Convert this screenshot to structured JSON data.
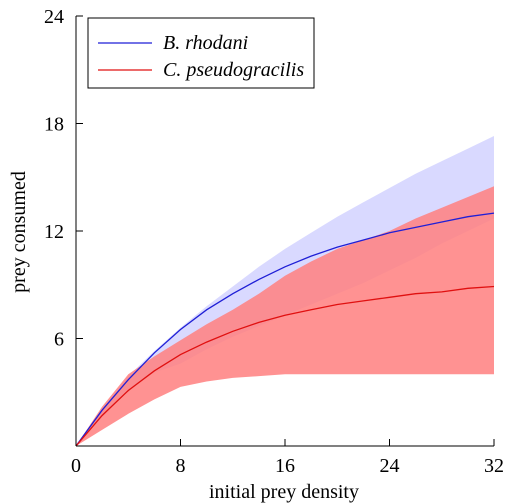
{
  "chart_data": {
    "type": "line",
    "title": "",
    "xlabel": "initial prey density",
    "ylabel": "prey consumed",
    "xlim": [
      0,
      32
    ],
    "ylim": [
      0,
      24
    ],
    "x_ticks": [
      0,
      8,
      16,
      24,
      32
    ],
    "y_ticks": [
      6,
      12,
      18,
      24
    ],
    "x_tick_labels": [
      "0",
      "8",
      "16",
      "24",
      "32"
    ],
    "y_tick_labels": [
      "6",
      "12",
      "18",
      "24"
    ],
    "grid": false,
    "legend_position": "top-left",
    "series": [
      {
        "name": "B. rhodani",
        "color": "#1f1fd6",
        "band_color": "#d9d9ff",
        "x": [
          0,
          2,
          4,
          6,
          8,
          10,
          12,
          14,
          16,
          18,
          20,
          22,
          24,
          26,
          28,
          30,
          32
        ],
        "y": [
          0,
          2.0,
          3.7,
          5.2,
          6.5,
          7.6,
          8.5,
          9.3,
          10.0,
          10.6,
          11.1,
          11.5,
          11.9,
          12.2,
          12.5,
          12.8,
          13.0
        ],
        "ci_lower": [
          0,
          1.6,
          3.1,
          4.1,
          4.6,
          5.4,
          6.1,
          6.7,
          7.3,
          7.9,
          8.5,
          9.1,
          9.8,
          10.5,
          11.3,
          12.0,
          12.7
        ],
        "ci_upper": [
          0,
          2.0,
          3.9,
          5.3,
          6.6,
          7.8,
          8.9,
          10.0,
          11.0,
          11.9,
          12.8,
          13.6,
          14.4,
          15.2,
          15.9,
          16.6,
          17.3
        ]
      },
      {
        "name": "C. pseudogracilis",
        "color": "#e01010",
        "band_color": "#ff7f7f",
        "x": [
          0,
          2,
          4,
          6,
          8,
          10,
          12,
          14,
          16,
          18,
          20,
          22,
          24,
          26,
          28,
          30,
          32
        ],
        "y": [
          0,
          1.7,
          3.1,
          4.2,
          5.1,
          5.8,
          6.4,
          6.9,
          7.3,
          7.6,
          7.9,
          8.1,
          8.3,
          8.5,
          8.6,
          8.8,
          8.9
        ],
        "ci_lower": [
          0,
          0.9,
          1.8,
          2.6,
          3.3,
          3.6,
          3.8,
          3.9,
          4.0,
          4.0,
          4.0,
          4.0,
          4.0,
          4.0,
          4.0,
          4.0,
          4.0
        ],
        "ci_upper": [
          0,
          2.2,
          4.0,
          5.0,
          5.9,
          6.8,
          7.6,
          8.5,
          9.5,
          10.3,
          11.0,
          11.5,
          12.0,
          12.7,
          13.3,
          13.9,
          14.5
        ]
      }
    ]
  }
}
